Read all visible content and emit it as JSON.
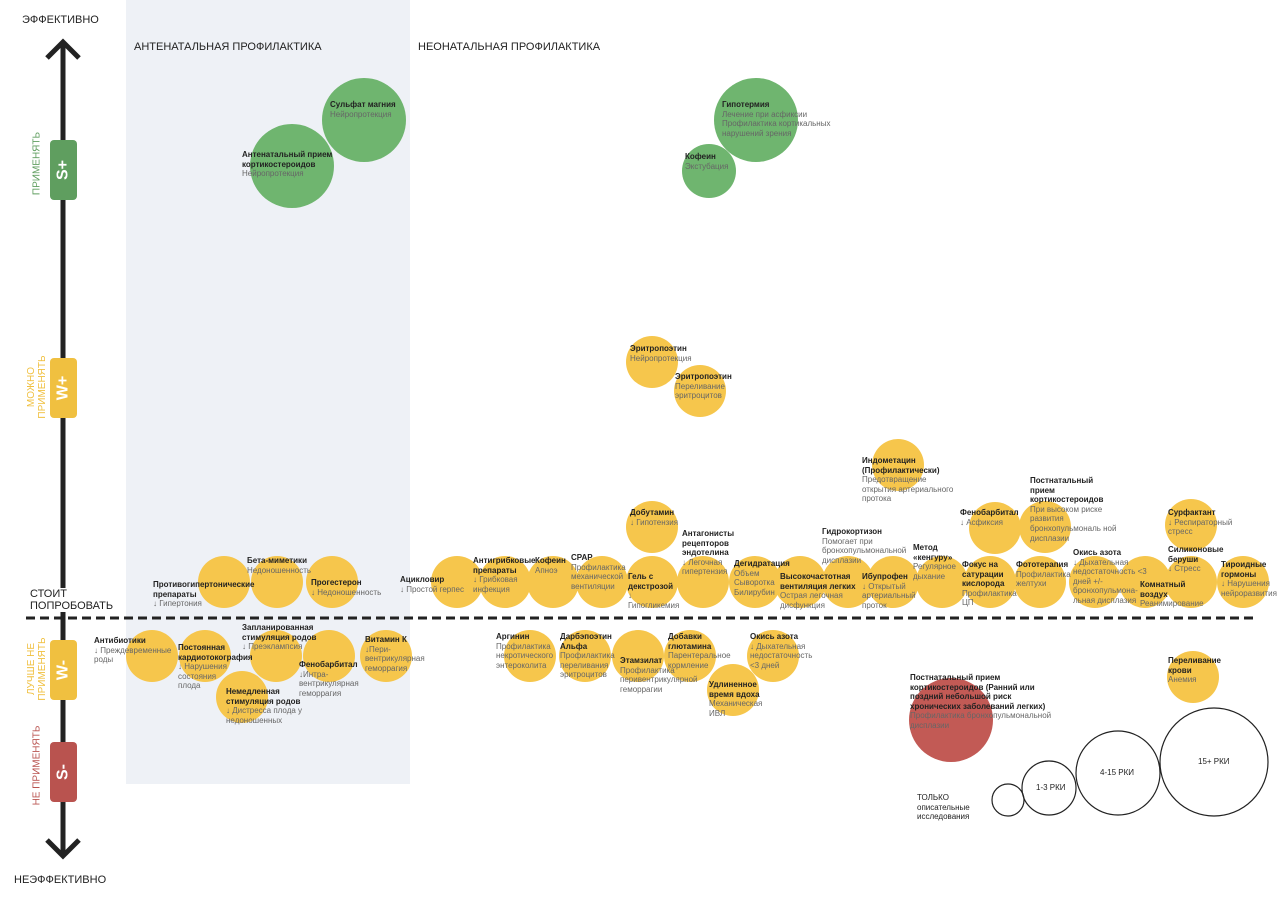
{
  "axis": {
    "top": "ЭФФЕКТИВНО",
    "bottom": "НЕЭФФЕКТИВНО"
  },
  "zones": [
    {
      "label": "ПРИМЕНЯТЬ",
      "badge": "S+",
      "color": "#5f9e5f"
    },
    {
      "label": "МОЖНО ПРИМЕНЯТЬ",
      "badge": "W+",
      "color": "#f0c040"
    },
    {
      "label": "ЛУЧШЕ НЕ ПРИМЕНЯТЬ",
      "badge": "W-",
      "color": "#f0c040"
    },
    {
      "label": "НЕ ПРИМЕНЯТЬ",
      "badge": "S-",
      "color": "#b9534f"
    }
  ],
  "threshold": "СТОИТ ПОПРОБОВАТЬ",
  "sections": [
    "АНТЕНАТАЛЬНАЯ ПРОФИЛАКТИКА",
    "НЕОНАТАЛЬНАЯ ПРОФИЛАКТИКА"
  ],
  "bubbles": [
    {
      "title": "Сульфат магния",
      "text": "Нейропротекция",
      "color": "#6fb56f"
    },
    {
      "title": "Антенатальный прием кортикостероидов",
      "text": "Нейропротекция",
      "color": "#6fb56f"
    },
    {
      "title": "Гипотермия",
      "text": "Лечение при асфиксии Профилактика кортикальных нарушений зрения",
      "color": "#6fb56f"
    },
    {
      "title": "Кофеин",
      "text": "Экстубация",
      "color": "#6fb56f"
    },
    {
      "title": "Эритропоэтин",
      "text": "Нейропротекция",
      "color": "#f6c64c"
    },
    {
      "title": "Эритропоэтин",
      "text": "Переливание эритроцитов",
      "color": "#f6c64c"
    },
    {
      "title": "Индометацин (Профилактически)",
      "text": "Предотвращение открытия артериального протока",
      "color": "#f6c64c"
    },
    {
      "title": "Добутамин",
      "text": "↓ Гипотензия",
      "color": "#f6c64c"
    },
    {
      "title": "Постнатальный прием кортикостероидов",
      "text": "При высоком риске развития бронхопульмональ ной дисплазии",
      "color": "#f6c64c"
    },
    {
      "title": "Фенобарбитал",
      "text": "↓ Асфиксия",
      "color": "#f6c64c"
    },
    {
      "title": "Сурфактант",
      "text": "↓ Респираторный стресс",
      "color": "#f6c64c"
    },
    {
      "title": "Противогипертонические препараты",
      "text": "↓ Гипертония",
      "color": "#f6c64c"
    },
    {
      "title": "Бета-миметики",
      "text": "Недоношенность",
      "color": "#f6c64c"
    },
    {
      "title": "Прогестерон",
      "text": "↓ Недоношенность",
      "color": "#f6c64c"
    },
    {
      "title": "Ацикловир",
      "text": "↓ Простой герпес",
      "color": "#f6c64c"
    },
    {
      "title": "Антигрибковые препараты",
      "text": "↓ Грибковая инфекция",
      "color": "#f6c64c"
    },
    {
      "title": "Кофеин",
      "text": "Апноэ",
      "color": "#f6c64c"
    },
    {
      "title": "CPAP",
      "text": "Профилактика механической вентиляции",
      "color": "#f6c64c"
    },
    {
      "title": "Гель с декстрозой",
      "text": "↓ Гипогликемия",
      "color": "#f6c64c"
    },
    {
      "title": "Антагонисты рецепторов эндотелина",
      "text": "↓ Легочная гипертензия",
      "color": "#f6c64c"
    },
    {
      "title": "Дегидратация",
      "text": "Объем Сыворотка Билирубин",
      "color": "#f6c64c"
    },
    {
      "title": "Высокочастотная вентиляция легких",
      "text": "Острая легочная дисфункция",
      "color": "#f6c64c"
    },
    {
      "title": "Гидрокортизон",
      "text": "Помогает при бронхопульмональной дисплазии",
      "color": "#f6c64c"
    },
    {
      "title": "Ибупрофен",
      "text": "↓ Открытый артериальный проток",
      "color": "#f6c64c"
    },
    {
      "title": "Метод «кенгуру»",
      "text": "Регулярное дыхание",
      "color": "#f6c64c"
    },
    {
      "title": "Фокус на сатурации кислорода",
      "text": "Профилактика ЦП",
      "color": "#f6c64c"
    },
    {
      "title": "Фототерапия",
      "text": "Профилактика желтухи",
      "color": "#f6c64c"
    },
    {
      "title": "Окись азота",
      "text": "↓ Дыхательная недостаточность <3 дней +/- бронхопульмона-льная дисплазия",
      "color": "#f6c64c"
    },
    {
      "title": "Комнатный воздух",
      "text": "Реанимирование",
      "color": "#f6c64c"
    },
    {
      "title": "Силиконовые беруши",
      "text": "↓ Стресс",
      "color": "#f6c64c"
    },
    {
      "title": "Тироидные гормоны",
      "text": "↓ Нарушения нейроразвития",
      "color": "#f6c64c"
    },
    {
      "title": "Антибиотики",
      "text": "↓ Преждевременные роды",
      "color": "#f6c64c"
    },
    {
      "title": "Постоянная кардиотокография",
      "text": "↓ Нарушения состояния плода",
      "color": "#f6c64c"
    },
    {
      "title": "Запланированная стимуляция родов",
      "text": "↓ Преэклампсия",
      "color": "#f6c64c"
    },
    {
      "title": "Немедленная стимуляция родов",
      "text": "↓ Дистресса плода у недоношенных",
      "color": "#f6c64c"
    },
    {
      "title": "Фенобарбитал",
      "text": "↓Интра-вентрикулярная геморрагия",
      "color": "#f6c64c"
    },
    {
      "title": "Витамин К",
      "text": "↓Пери-вентрикулярная геморрагия",
      "color": "#f6c64c"
    },
    {
      "title": "Аргинин",
      "text": "Профилактика некротического энтероколита",
      "color": "#f6c64c"
    },
    {
      "title": "Дарбэпоэтин Альфа",
      "text": "Профилактика переливания эритроцитов",
      "color": "#f6c64c"
    },
    {
      "title": "Этамзилат",
      "text": "Профилактика перивентрикулярной геморрагии",
      "color": "#f6c64c"
    },
    {
      "title": "Добавки глютамина",
      "text": "Парентеральное кормление",
      "color": "#f6c64c"
    },
    {
      "title": "Окись азота",
      "text": "↓ Дыхательная недостаточность <3 дней",
      "color": "#f6c64c"
    },
    {
      "title": "Удлиненное время вдоха",
      "text": "Механическая ИВЛ",
      "color": "#f6c64c"
    },
    {
      "title": "Переливание крови",
      "text": "Анемия",
      "color": "#f6c64c"
    },
    {
      "title": "Постнатальный прием кортикостероидов (Ранний или поздний небольшой риск хронических заболеваний легких)",
      "text": "Профилактика бронхопульмональной дисплазии",
      "color": "#c25a55"
    }
  ],
  "legend": [
    "ТОЛЬКО описательные исследования",
    "1-3 РКИ",
    "4-15 РКИ",
    "15+ РКИ"
  ]
}
